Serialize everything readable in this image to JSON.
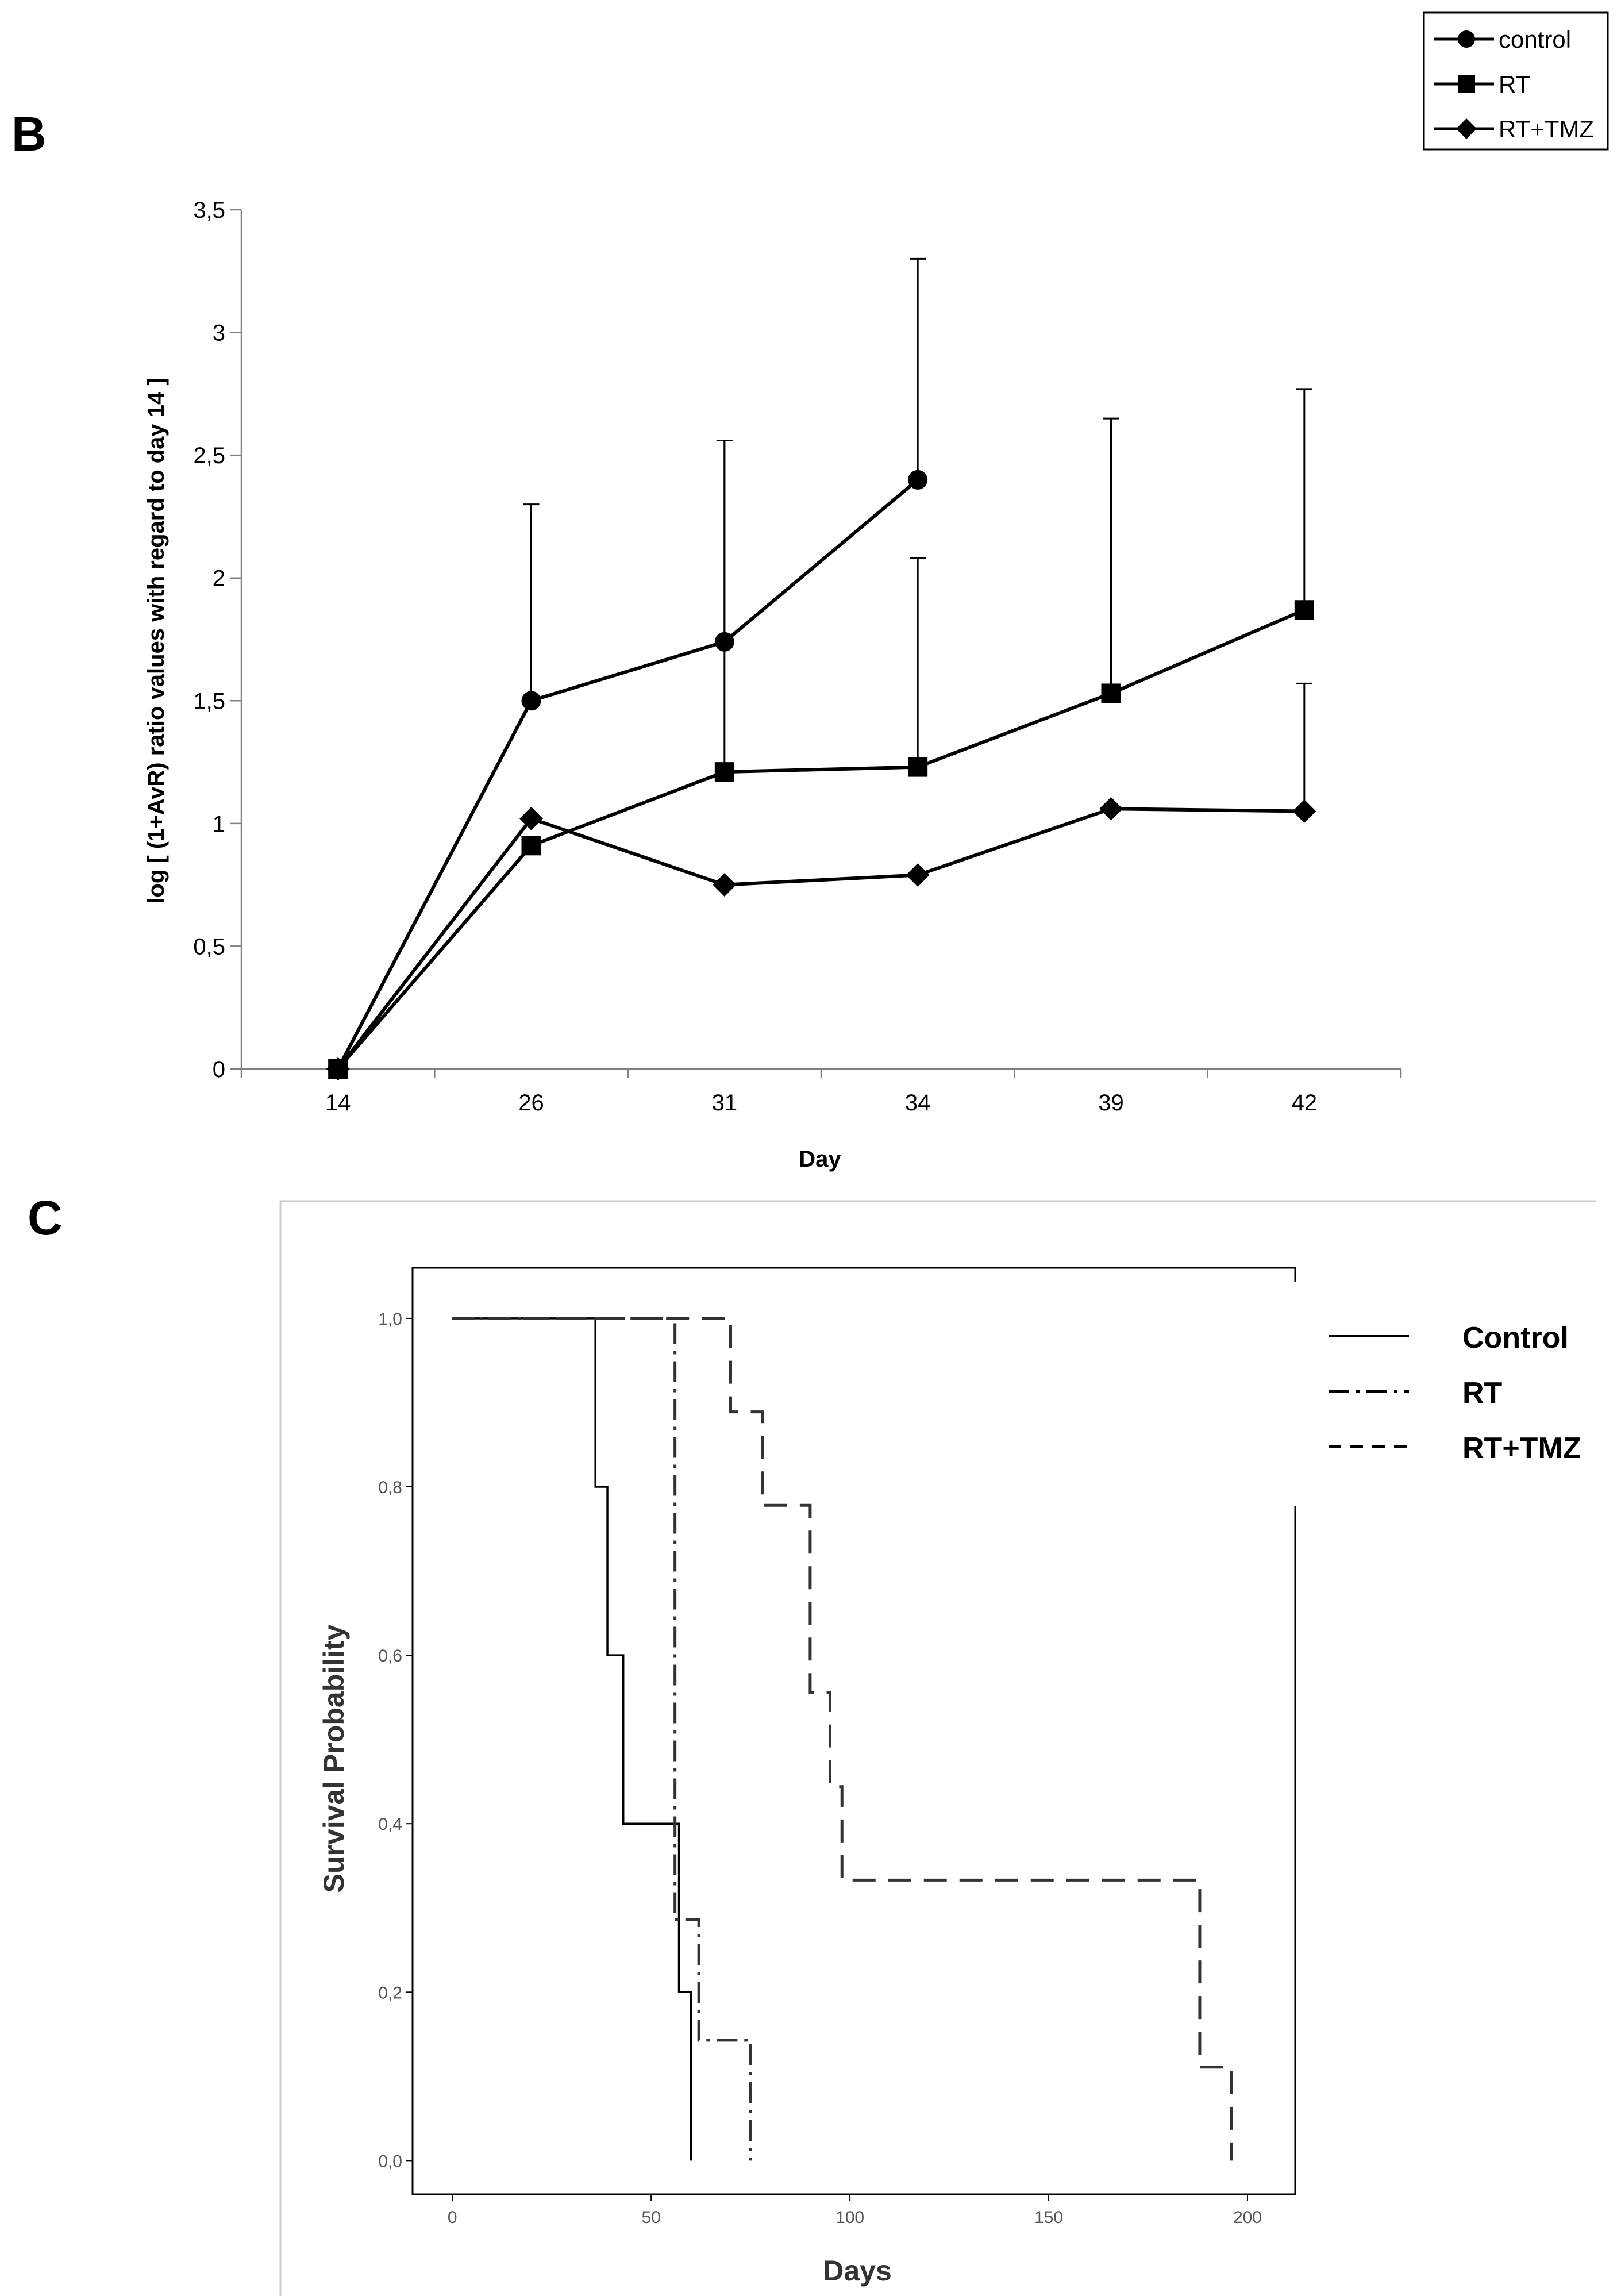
{
  "figure": {
    "panel_b_label": "B",
    "panel_c_label": "C"
  },
  "chart_data": [
    {
      "type": "line",
      "panel": "B",
      "title": "",
      "xlabel": "Day",
      "ylabel": "log [ (1+AvR) ratio values with regard to day 14 ]",
      "categories": [
        "14",
        "26",
        "31",
        "34",
        "39",
        "42"
      ],
      "ylim": [
        0,
        3.5
      ],
      "yticks": [
        {
          "value": 0,
          "label": "0"
        },
        {
          "value": 0.5,
          "label": "0,5"
        },
        {
          "value": 1,
          "label": "1"
        },
        {
          "value": 1.5,
          "label": "1,5"
        },
        {
          "value": 2,
          "label": "2"
        },
        {
          "value": 2.5,
          "label": "2,5"
        },
        {
          "value": 3,
          "label": "3"
        },
        {
          "value": 3.5,
          "label": "3,5"
        }
      ],
      "legend_position": "top-right",
      "series": [
        {
          "name": "control",
          "marker": "circle",
          "values": [
            0,
            1.5,
            1.74,
            2.4,
            null,
            null
          ],
          "errors": [
            0,
            0.8,
            0.82,
            0.9,
            null,
            null
          ]
        },
        {
          "name": "RT",
          "marker": "square",
          "values": [
            0,
            0.91,
            1.21,
            1.23,
            1.53,
            1.87
          ],
          "errors": [
            0,
            null,
            1.35,
            0.85,
            1.12,
            0.9
          ]
        },
        {
          "name": "RT+TMZ",
          "marker": "diamond",
          "values": [
            0,
            1.02,
            0.75,
            0.79,
            1.06,
            1.05
          ],
          "errors": [
            0,
            null,
            null,
            null,
            null,
            0.52
          ]
        }
      ]
    },
    {
      "type": "line",
      "subtype": "kaplan-meier",
      "panel": "C",
      "title": "",
      "xlabel": "Days",
      "ylabel": "Survival Probability",
      "xlim": [
        -10,
        212
      ],
      "ylim": [
        -0.04,
        1.06
      ],
      "xticks": [
        {
          "value": 0,
          "label": "0"
        },
        {
          "value": 50,
          "label": "50"
        },
        {
          "value": 100,
          "label": "100"
        },
        {
          "value": 150,
          "label": "150"
        },
        {
          "value": 200,
          "label": "200"
        }
      ],
      "yticks": [
        {
          "value": 0,
          "label": "0,0"
        },
        {
          "value": 0.2,
          "label": "0,2"
        },
        {
          "value": 0.4,
          "label": "0,4"
        },
        {
          "value": 0.6,
          "label": "0,6"
        },
        {
          "value": 0.8,
          "label": "0,8"
        },
        {
          "value": 1.0,
          "label": "1,0"
        }
      ],
      "legend_position": "right",
      "series": [
        {
          "name": "Control",
          "style": "solid",
          "color": "#000000",
          "steps": [
            [
              0,
              1.0
            ],
            [
              36,
              1.0
            ],
            [
              36,
              0.8
            ],
            [
              39,
              0.8
            ],
            [
              39,
              0.6
            ],
            [
              43,
              0.6
            ],
            [
              43,
              0.4
            ],
            [
              57,
              0.4
            ],
            [
              57,
              0.2
            ],
            [
              60,
              0.2
            ],
            [
              60,
              0.0
            ]
          ]
        },
        {
          "name": "RT",
          "style": "dash-dot",
          "color": "#333333",
          "steps": [
            [
              0,
              1.0
            ],
            [
              56,
              1.0
            ],
            [
              56,
              0.286
            ],
            [
              62,
              0.286
            ],
            [
              62,
              0.143
            ],
            [
              75,
              0.143
            ],
            [
              75,
              0.0
            ]
          ]
        },
        {
          "name": "RT+TMZ",
          "style": "dashed",
          "color": "#333333",
          "steps": [
            [
              0,
              1.0
            ],
            [
              70,
              1.0
            ],
            [
              70,
              0.889
            ],
            [
              78,
              0.889
            ],
            [
              78,
              0.778
            ],
            [
              90,
              0.778
            ],
            [
              90,
              0.556
            ],
            [
              95,
              0.556
            ],
            [
              95,
              0.444
            ],
            [
              98,
              0.444
            ],
            [
              98,
              0.333
            ],
            [
              188,
              0.333
            ],
            [
              188,
              0.111
            ],
            [
              196,
              0.111
            ],
            [
              196,
              0.0
            ]
          ]
        }
      ]
    }
  ]
}
